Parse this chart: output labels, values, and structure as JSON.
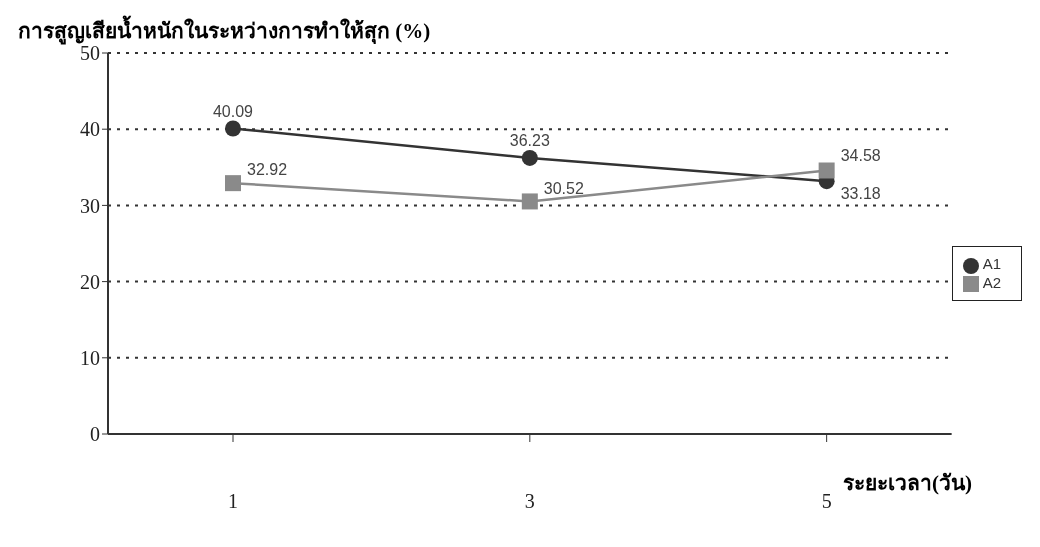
{
  "chart_data": {
    "type": "line",
    "ylabel": "การสูญเสียน้ำหนักในระหว่างการทำให้สุก (%)",
    "xlabel": "ระยะเวลา(วัน)",
    "categories": [
      "1",
      "3",
      "5"
    ],
    "series": [
      {
        "name": "A1",
        "color": "#333333",
        "values": [
          40.09,
          36.23,
          33.18
        ],
        "marker": "circle"
      },
      {
        "name": "A2",
        "color": "#8a8a8a",
        "values": [
          32.92,
          30.52,
          34.58
        ],
        "marker": "square"
      }
    ],
    "ylim": [
      0,
      50
    ],
    "yticks": [
      0,
      10,
      20,
      30,
      40,
      50
    ],
    "grid": "y",
    "legend": "right",
    "data_labels": true
  }
}
